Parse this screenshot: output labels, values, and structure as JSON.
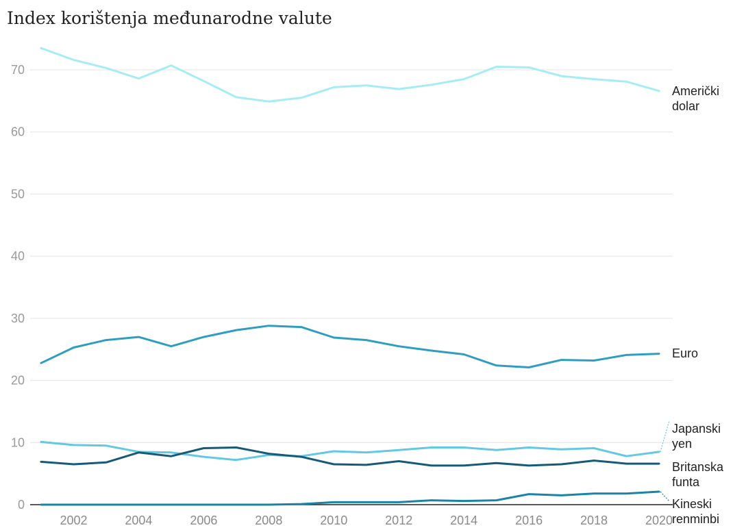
{
  "chart_data": {
    "type": "line",
    "title": "Index korištenja međunarodne valute",
    "xlabel": "",
    "ylabel": "",
    "ylim": [
      0,
      75
    ],
    "xlim": [
      2001,
      2020
    ],
    "yticks": [
      0,
      10,
      20,
      30,
      40,
      50,
      60,
      70
    ],
    "xticks": [
      2002,
      2004,
      2006,
      2008,
      2010,
      2012,
      2014,
      2016,
      2018,
      2020
    ],
    "grid": true,
    "x": [
      2001,
      2002,
      2003,
      2004,
      2005,
      2006,
      2007,
      2008,
      2009,
      2010,
      2011,
      2012,
      2013,
      2014,
      2015,
      2016,
      2017,
      2018,
      2019,
      2020
    ],
    "series": [
      {
        "name": "Američki dolar",
        "label_lines": [
          "Američki",
          "dolar"
        ],
        "color": "#a6ecf5",
        "values": [
          73.5,
          71.6,
          70.3,
          68.6,
          70.7,
          68.2,
          65.6,
          64.9,
          65.5,
          67.2,
          67.5,
          66.9,
          67.6,
          68.5,
          70.5,
          70.4,
          69.0,
          68.5,
          68.1,
          66.6
        ]
      },
      {
        "name": "Euro",
        "label_lines": [
          "Euro"
        ],
        "color": "#2f9dc2",
        "values": [
          22.8,
          25.3,
          26.5,
          27.0,
          25.5,
          27.0,
          28.1,
          28.8,
          28.6,
          26.9,
          26.5,
          25.5,
          24.8,
          24.2,
          22.4,
          22.1,
          23.3,
          23.2,
          24.1,
          24.3
        ]
      },
      {
        "name": "Japanski yen",
        "label_lines": [
          "Japanski",
          "yen"
        ],
        "color": "#62c8e4",
        "values": [
          10.1,
          9.6,
          9.5,
          8.5,
          8.4,
          7.7,
          7.2,
          8.0,
          7.8,
          8.6,
          8.4,
          8.8,
          9.2,
          9.2,
          8.8,
          9.2,
          8.9,
          9.1,
          7.8,
          8.5
        ]
      },
      {
        "name": "Britanska funta",
        "label_lines": [
          "Britanska",
          "funta"
        ],
        "color": "#155b78",
        "values": [
          6.9,
          6.5,
          6.8,
          8.4,
          7.8,
          9.1,
          9.2,
          8.2,
          7.7,
          6.5,
          6.4,
          7.0,
          6.3,
          6.3,
          6.7,
          6.3,
          6.5,
          7.1,
          6.6,
          6.6
        ]
      },
      {
        "name": "Kineski renminbi",
        "label_lines": [
          "Kineski",
          "renminbi"
        ],
        "color": "#1a84a6",
        "values": [
          0.0,
          0.0,
          0.0,
          0.0,
          0.0,
          0.0,
          0.0,
          0.0,
          0.1,
          0.4,
          0.4,
          0.4,
          0.7,
          0.6,
          0.7,
          1.7,
          1.5,
          1.8,
          1.8,
          2.1
        ]
      }
    ]
  }
}
